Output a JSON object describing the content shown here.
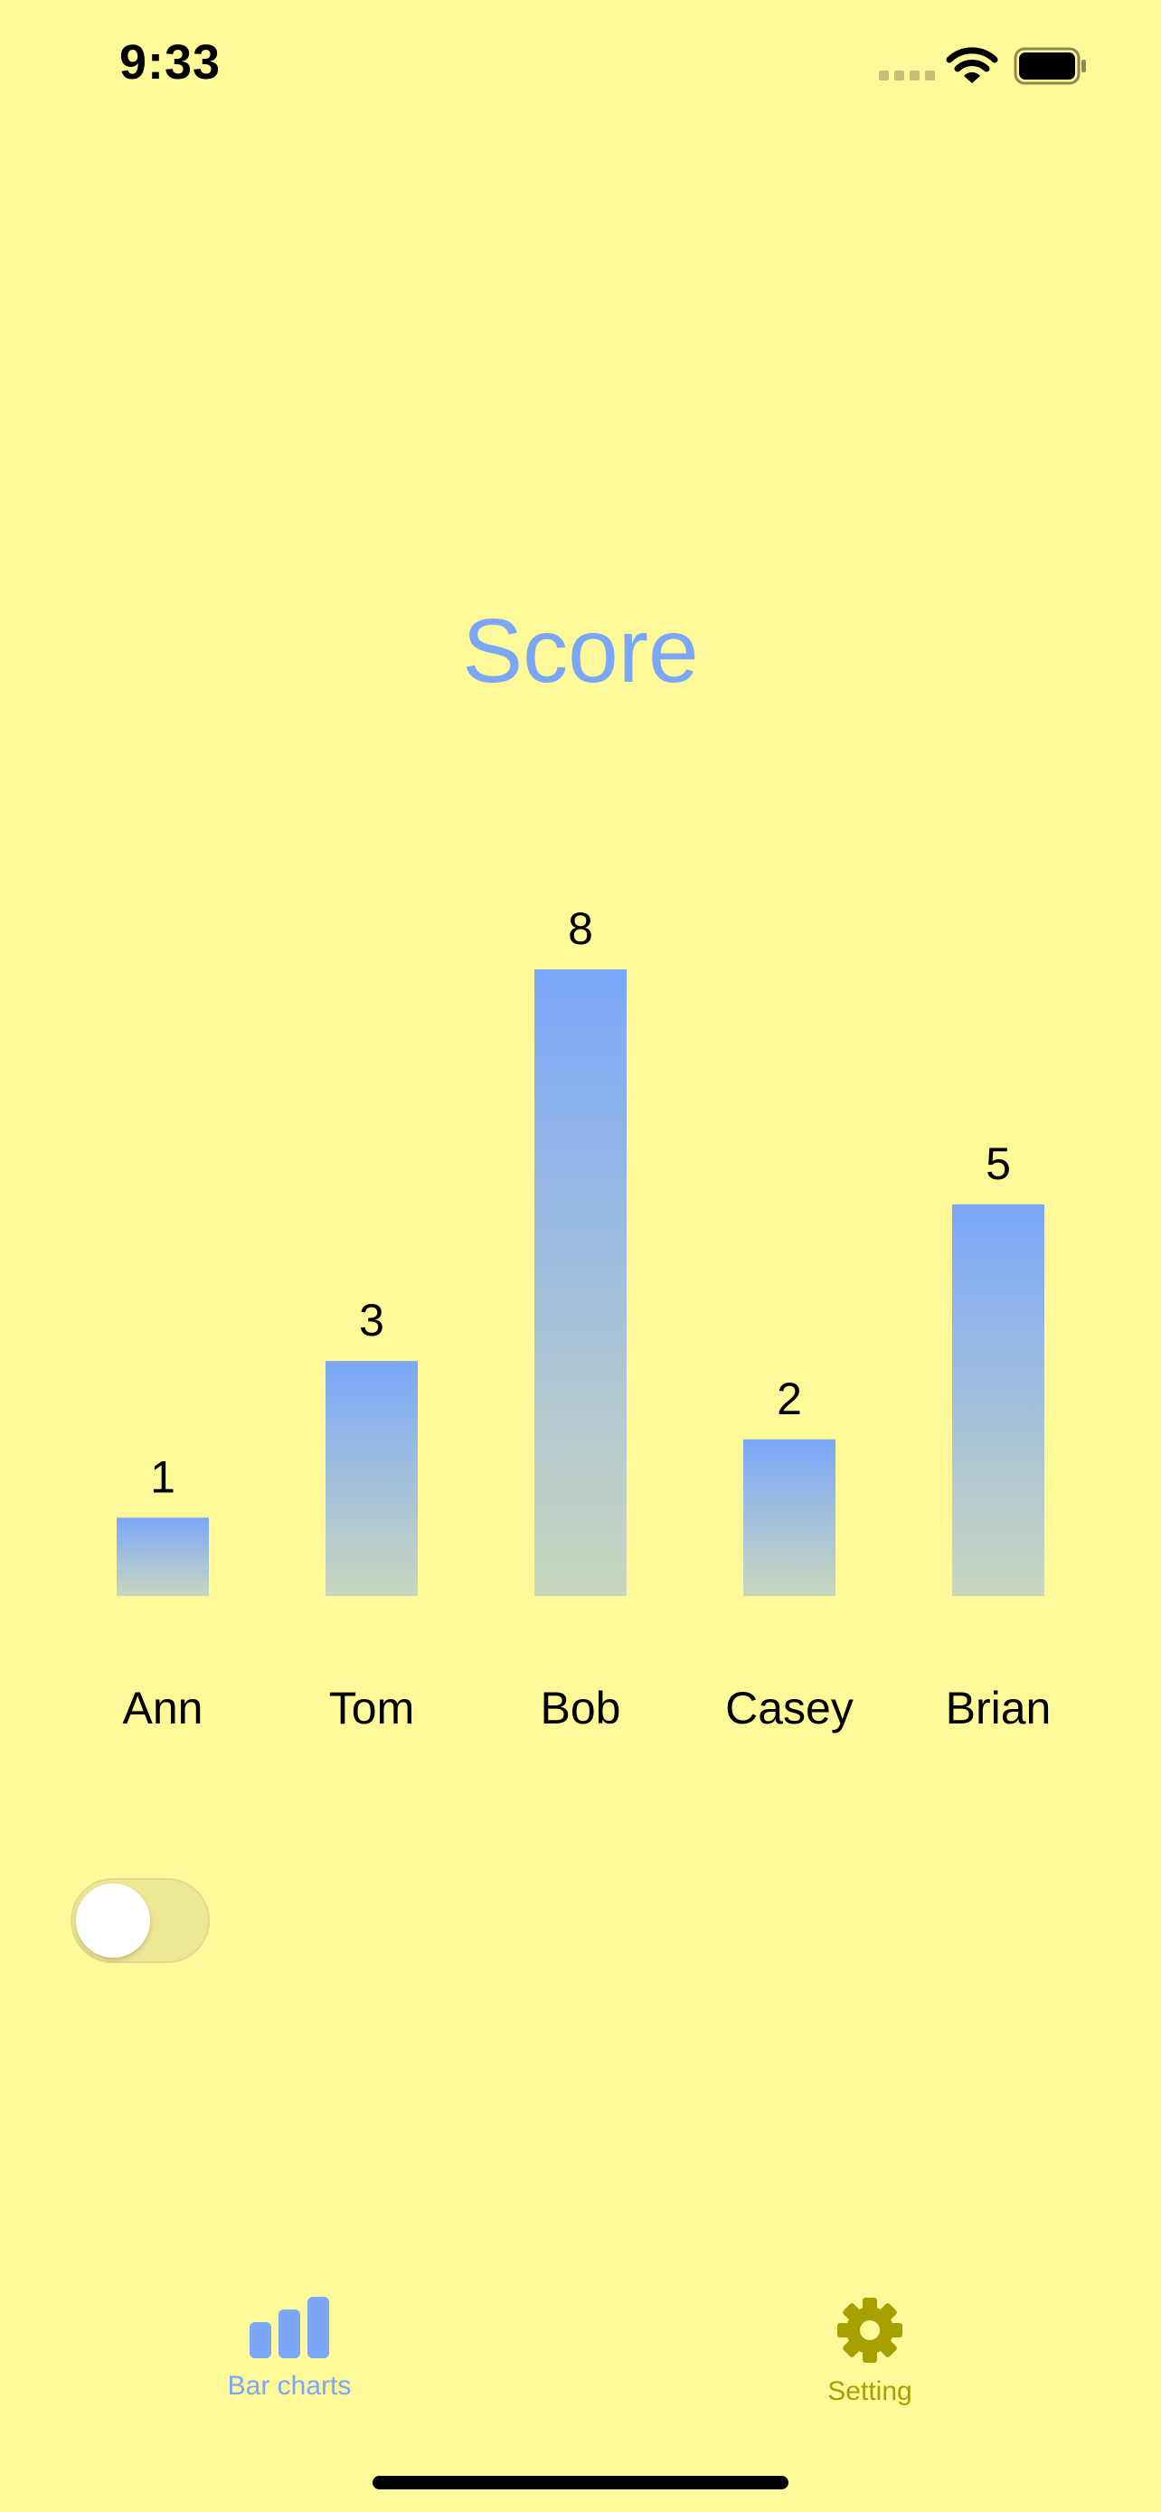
{
  "status_bar": {
    "time": "9:33"
  },
  "icons": {
    "cellular": "cellular-signal-icon",
    "wifi": "wifi-icon",
    "battery": "battery-icon",
    "tab_bar_charts": "chart-bar-icon",
    "tab_setting": "gear-icon"
  },
  "chart_data": {
    "type": "bar",
    "title": "Score",
    "categories": [
      "Ann",
      "Tom",
      "Bob",
      "Casey",
      "Brian"
    ],
    "values": [
      1,
      3,
      8,
      2,
      5
    ],
    "value_labels": [
      "1",
      "3",
      "8",
      "2",
      "5"
    ],
    "xlabel": "",
    "ylabel": "",
    "ylim": [
      0,
      8
    ],
    "grid": false,
    "bar_gradient_top": "#7AA7FA",
    "bar_gradient_bottom": "#C9D7BF"
  },
  "toggle": {
    "on": false
  },
  "tab_bar": {
    "items": [
      {
        "label": "Bar charts",
        "selected": true
      },
      {
        "label": "Setting",
        "selected": false
      }
    ]
  },
  "colors": {
    "background": "#FFF99A",
    "accent": "#7AA7FA",
    "setting_tint": "#A8A000"
  }
}
